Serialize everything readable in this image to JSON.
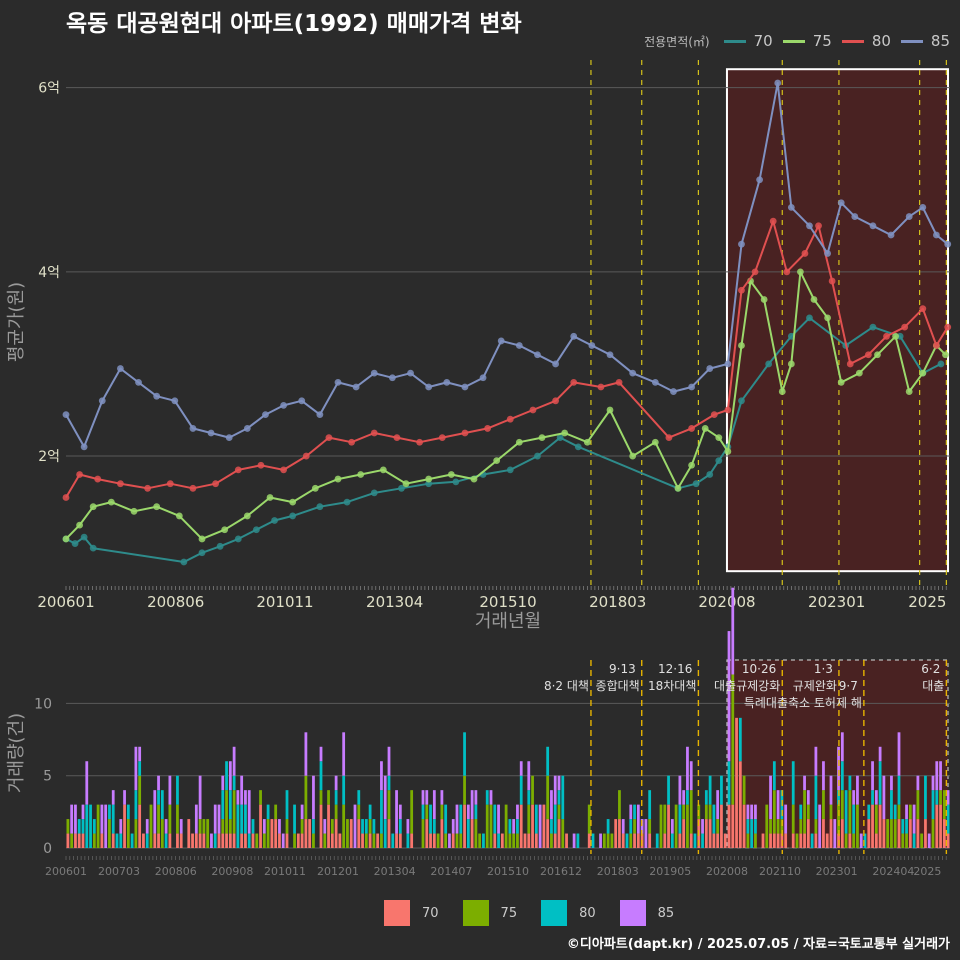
{
  "title": "옥동 대공원현대 아파트(1992) 매매가격 변화",
  "footer": "©디아파트(dapt.kr) / 2025.07.05 / 자료=국토교통부 실거래가",
  "legend_title": "전용면적(㎡)",
  "series_colors": {
    "70": "#2e8b8b",
    "75": "#9bd86b",
    "80": "#e05050",
    "85": "#7f90c0"
  },
  "bar_colors": {
    "70": "#f8766d",
    "75": "#7cae00",
    "80": "#00bfc4",
    "85": "#c77cff"
  },
  "policy_color": "#d4c21a",
  "chart_data": [
    {
      "type": "line",
      "xlabel": "거래년월",
      "ylabel": "평균가(원)",
      "y_unit": "억",
      "ylim": [
        0.6,
        6.3
      ],
      "yticks": [
        {
          "v": 2,
          "label": "2억"
        },
        {
          "v": 4,
          "label": "4억"
        },
        {
          "v": 6,
          "label": "6억"
        }
      ],
      "x_start": "2006.0",
      "x_end": "2025.5",
      "xticks": [
        {
          "t": 2006.0,
          "label": "200601"
        },
        {
          "t": 2008.42,
          "label": "200806"
        },
        {
          "t": 2010.83,
          "label": "201011"
        },
        {
          "t": 2013.25,
          "label": "201304"
        },
        {
          "t": 2015.75,
          "label": "201510"
        },
        {
          "t": 2018.17,
          "label": "201803"
        },
        {
          "t": 2020.58,
          "label": "202008"
        },
        {
          "t": 2023.0,
          "label": "202301"
        },
        {
          "t": 2025.0,
          "label": "2025"
        }
      ],
      "highlight_range": [
        2020.58,
        2025.5
      ],
      "highlight_ylim": [
        0.75,
        6.2
      ],
      "policy_lines": [
        2017.58,
        2018.7,
        2019.95,
        2021.8,
        2023.05,
        2024.83,
        2025.42
      ],
      "series": [
        {
          "name": "70",
          "points": [
            [
              2006.0,
              1.1
            ],
            [
              2006.2,
              1.05
            ],
            [
              2006.4,
              1.12
            ],
            [
              2006.6,
              1.0
            ],
            [
              2008.6,
              0.85
            ],
            [
              2009.0,
              0.95
            ],
            [
              2009.4,
              1.02
            ],
            [
              2009.8,
              1.1
            ],
            [
              2010.2,
              1.2
            ],
            [
              2010.6,
              1.3
            ],
            [
              2011.0,
              1.35
            ],
            [
              2011.6,
              1.45
            ],
            [
              2012.2,
              1.5
            ],
            [
              2012.8,
              1.6
            ],
            [
              2013.4,
              1.65
            ],
            [
              2014.0,
              1.7
            ],
            [
              2014.6,
              1.72
            ],
            [
              2015.2,
              1.8
            ],
            [
              2015.8,
              1.85
            ],
            [
              2016.4,
              2.0
            ],
            [
              2016.9,
              2.2
            ],
            [
              2017.3,
              2.1
            ],
            [
              2019.5,
              1.65
            ],
            [
              2019.9,
              1.7
            ],
            [
              2020.2,
              1.8
            ],
            [
              2020.4,
              1.95
            ],
            [
              2020.6,
              2.1
            ],
            [
              2020.9,
              2.6
            ],
            [
              2021.5,
              3.0
            ],
            [
              2022.0,
              3.3
            ],
            [
              2022.4,
              3.5
            ],
            [
              2023.2,
              3.2
            ],
            [
              2023.8,
              3.4
            ],
            [
              2024.4,
              3.3
            ],
            [
              2024.9,
              2.9
            ],
            [
              2025.3,
              3.0
            ]
          ]
        },
        {
          "name": "75",
          "points": [
            [
              2006.0,
              1.1
            ],
            [
              2006.3,
              1.25
            ],
            [
              2006.6,
              1.45
            ],
            [
              2007.0,
              1.5
            ],
            [
              2007.5,
              1.4
            ],
            [
              2008.0,
              1.45
            ],
            [
              2008.5,
              1.35
            ],
            [
              2009.0,
              1.1
            ],
            [
              2009.5,
              1.2
            ],
            [
              2010.0,
              1.35
            ],
            [
              2010.5,
              1.55
            ],
            [
              2011.0,
              1.5
            ],
            [
              2011.5,
              1.65
            ],
            [
              2012.0,
              1.75
            ],
            [
              2012.5,
              1.8
            ],
            [
              2013.0,
              1.85
            ],
            [
              2013.5,
              1.7
            ],
            [
              2014.0,
              1.75
            ],
            [
              2014.5,
              1.8
            ],
            [
              2015.0,
              1.75
            ],
            [
              2015.5,
              1.95
            ],
            [
              2016.0,
              2.15
            ],
            [
              2016.5,
              2.2
            ],
            [
              2017.0,
              2.25
            ],
            [
              2017.5,
              2.15
            ],
            [
              2018.0,
              2.5
            ],
            [
              2018.5,
              2.0
            ],
            [
              2019.0,
              2.15
            ],
            [
              2019.5,
              1.65
            ],
            [
              2019.8,
              1.9
            ],
            [
              2020.1,
              2.3
            ],
            [
              2020.4,
              2.2
            ],
            [
              2020.6,
              2.05
            ],
            [
              2020.9,
              3.2
            ],
            [
              2021.1,
              3.9
            ],
            [
              2021.4,
              3.7
            ],
            [
              2021.8,
              2.7
            ],
            [
              2022.0,
              3.0
            ],
            [
              2022.2,
              4.0
            ],
            [
              2022.5,
              3.7
            ],
            [
              2022.8,
              3.5
            ],
            [
              2023.1,
              2.8
            ],
            [
              2023.5,
              2.9
            ],
            [
              2023.9,
              3.1
            ],
            [
              2024.3,
              3.3
            ],
            [
              2024.6,
              2.7
            ],
            [
              2024.9,
              2.9
            ],
            [
              2025.2,
              3.2
            ],
            [
              2025.4,
              3.1
            ]
          ]
        },
        {
          "name": "80",
          "points": [
            [
              2006.0,
              1.55
            ],
            [
              2006.3,
              1.8
            ],
            [
              2006.7,
              1.75
            ],
            [
              2007.2,
              1.7
            ],
            [
              2007.8,
              1.65
            ],
            [
              2008.3,
              1.7
            ],
            [
              2008.8,
              1.65
            ],
            [
              2009.3,
              1.7
            ],
            [
              2009.8,
              1.85
            ],
            [
              2010.3,
              1.9
            ],
            [
              2010.8,
              1.85
            ],
            [
              2011.3,
              2.0
            ],
            [
              2011.8,
              2.2
            ],
            [
              2012.3,
              2.15
            ],
            [
              2012.8,
              2.25
            ],
            [
              2013.3,
              2.2
            ],
            [
              2013.8,
              2.15
            ],
            [
              2014.3,
              2.2
            ],
            [
              2014.8,
              2.25
            ],
            [
              2015.3,
              2.3
            ],
            [
              2015.8,
              2.4
            ],
            [
              2016.3,
              2.5
            ],
            [
              2016.8,
              2.6
            ],
            [
              2017.2,
              2.8
            ],
            [
              2017.8,
              2.75
            ],
            [
              2018.2,
              2.8
            ],
            [
              2019.3,
              2.2
            ],
            [
              2019.8,
              2.3
            ],
            [
              2020.3,
              2.45
            ],
            [
              2020.6,
              2.5
            ],
            [
              2020.9,
              3.8
            ],
            [
              2021.2,
              4.0
            ],
            [
              2021.6,
              4.55
            ],
            [
              2021.9,
              4.0
            ],
            [
              2022.3,
              4.2
            ],
            [
              2022.6,
              4.5
            ],
            [
              2022.9,
              3.9
            ],
            [
              2023.3,
              3.0
            ],
            [
              2023.7,
              3.1
            ],
            [
              2024.1,
              3.3
            ],
            [
              2024.5,
              3.4
            ],
            [
              2024.9,
              3.6
            ],
            [
              2025.2,
              3.2
            ],
            [
              2025.45,
              3.4
            ]
          ]
        },
        {
          "name": "85",
          "points": [
            [
              2006.0,
              2.45
            ],
            [
              2006.4,
              2.1
            ],
            [
              2006.8,
              2.6
            ],
            [
              2007.2,
              2.95
            ],
            [
              2007.6,
              2.8
            ],
            [
              2008.0,
              2.65
            ],
            [
              2008.4,
              2.6
            ],
            [
              2008.8,
              2.3
            ],
            [
              2009.2,
              2.25
            ],
            [
              2009.6,
              2.2
            ],
            [
              2010.0,
              2.3
            ],
            [
              2010.4,
              2.45
            ],
            [
              2010.8,
              2.55
            ],
            [
              2011.2,
              2.6
            ],
            [
              2011.6,
              2.45
            ],
            [
              2012.0,
              2.8
            ],
            [
              2012.4,
              2.75
            ],
            [
              2012.8,
              2.9
            ],
            [
              2013.2,
              2.85
            ],
            [
              2013.6,
              2.9
            ],
            [
              2014.0,
              2.75
            ],
            [
              2014.4,
              2.8
            ],
            [
              2014.8,
              2.75
            ],
            [
              2015.2,
              2.85
            ],
            [
              2015.6,
              3.25
            ],
            [
              2016.0,
              3.2
            ],
            [
              2016.4,
              3.1
            ],
            [
              2016.8,
              3.0
            ],
            [
              2017.2,
              3.3
            ],
            [
              2017.6,
              3.2
            ],
            [
              2018.0,
              3.1
            ],
            [
              2018.5,
              2.9
            ],
            [
              2019.0,
              2.8
            ],
            [
              2019.4,
              2.7
            ],
            [
              2019.8,
              2.75
            ],
            [
              2020.2,
              2.95
            ],
            [
              2020.6,
              3.0
            ],
            [
              2020.9,
              4.3
            ],
            [
              2021.3,
              5.0
            ],
            [
              2021.7,
              6.05
            ],
            [
              2022.0,
              4.7
            ],
            [
              2022.4,
              4.5
            ],
            [
              2022.8,
              4.2
            ],
            [
              2023.1,
              4.75
            ],
            [
              2023.4,
              4.6
            ],
            [
              2023.8,
              4.5
            ],
            [
              2024.2,
              4.4
            ],
            [
              2024.6,
              4.6
            ],
            [
              2024.9,
              4.7
            ],
            [
              2025.2,
              4.4
            ],
            [
              2025.45,
              4.3
            ]
          ]
        }
      ]
    },
    {
      "type": "bar",
      "stacked": true,
      "xlabel": "",
      "ylabel": "거래량(건)",
      "ylim": [
        0,
        13
      ],
      "yticks": [
        0,
        5,
        10
      ],
      "xticks": [
        {
          "t": 2006.0,
          "label": "200601"
        },
        {
          "t": 2007.17,
          "label": "200703"
        },
        {
          "t": 2008.42,
          "label": "200806"
        },
        {
          "t": 2009.67,
          "label": "200908"
        },
        {
          "t": 2010.83,
          "label": "201011"
        },
        {
          "t": 2012.0,
          "label": "201201"
        },
        {
          "t": 2013.25,
          "label": "201304"
        },
        {
          "t": 2014.5,
          "label": "201407"
        },
        {
          "t": 2015.75,
          "label": "201510"
        },
        {
          "t": 2016.92,
          "label": "201612"
        },
        {
          "t": 2018.17,
          "label": "201803"
        },
        {
          "t": 2019.33,
          "label": "201905"
        },
        {
          "t": 2020.58,
          "label": "202008"
        },
        {
          "t": 2021.75,
          "label": "202110"
        },
        {
          "t": 2023.0,
          "label": "202301"
        },
        {
          "t": 2024.25,
          "label": "202404"
        },
        {
          "t": 2025.0,
          "label": "2025"
        }
      ],
      "highlight_range": [
        2020.58,
        2025.5
      ],
      "annotations": [
        {
          "t": 2017.58,
          "date": "",
          "label": "8·2 대책",
          "row": 1
        },
        {
          "t": 2018.7,
          "date": "9·13",
          "label": "종합대책",
          "row": 1
        },
        {
          "t": 2019.95,
          "date": "12·16",
          "label": "18차대책",
          "row": 1
        },
        {
          "t": 2021.8,
          "date": "10·26",
          "label": "대출규제강화",
          "row": 1
        },
        {
          "t": 2023.05,
          "date": "1·3",
          "label": "규제완화",
          "row": 1
        },
        {
          "t": 2023.6,
          "date": "9·7",
          "label": "특례대출축소 토허제 해",
          "row": 2
        },
        {
          "t": 2025.42,
          "date": "6·2",
          "label": "대출",
          "row": 1
        }
      ],
      "series_names": [
        "70",
        "75",
        "80",
        "85"
      ]
    }
  ]
}
